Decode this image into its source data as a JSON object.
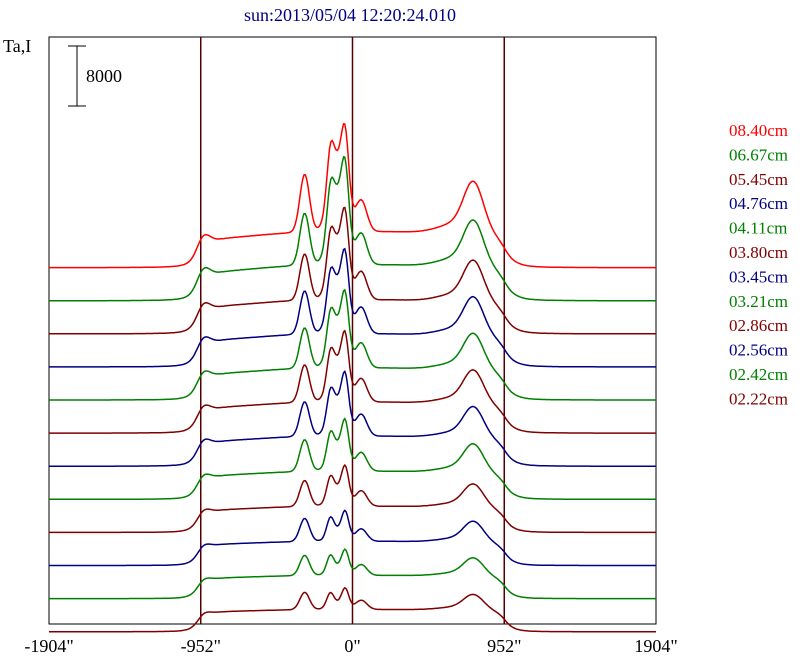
{
  "chart_data": {
    "type": "line",
    "title": "sun:2013/05/04 12:20:24.010",
    "ylabel": "Ta,I",
    "scale_bar_label": "8000",
    "x_tick_values": [
      -1904,
      -952,
      0,
      952,
      1904
    ],
    "x_tick_labels": [
      "-1904\"",
      "-952\"",
      "0\"",
      "952\"",
      "1904\""
    ],
    "xlim": [
      -1904,
      1904
    ],
    "vertical_lines": [
      -952,
      0,
      952
    ],
    "colors": {
      "red": "#ff0000",
      "green": "#008000",
      "maroon": "#800000",
      "navy": "#000080",
      "title": "#000080",
      "axis": "#000000",
      "vline": "#550000"
    },
    "series": [
      {
        "name": "08.40cm",
        "color": "red",
        "baseline": 0,
        "a": 1.0,
        "b": 1.0
      },
      {
        "name": "06.67cm",
        "color": "green",
        "baseline": 1,
        "a": 1.0,
        "b": 0.9
      },
      {
        "name": "05.45cm",
        "color": "maroon",
        "baseline": 2,
        "a": 0.9,
        "b": 0.8
      },
      {
        "name": "04.76cm",
        "color": "navy",
        "baseline": 3,
        "a": 0.85,
        "b": 0.75
      },
      {
        "name": "04.11cm",
        "color": "green",
        "baseline": 4,
        "a": 0.8,
        "b": 0.7
      },
      {
        "name": "03.80cm",
        "color": "maroon",
        "baseline": 5,
        "a": 0.75,
        "b": 0.65
      },
      {
        "name": "03.45cm",
        "color": "navy",
        "baseline": 6,
        "a": 0.7,
        "b": 0.6
      },
      {
        "name": "03.21cm",
        "color": "green",
        "baseline": 7,
        "a": 0.6,
        "b": 0.55
      },
      {
        "name": "02.86cm",
        "color": "maroon",
        "baseline": 8,
        "a": 0.5,
        "b": 0.45
      },
      {
        "name": "02.56cm",
        "color": "navy",
        "baseline": 9,
        "a": 0.4,
        "b": 0.4
      },
      {
        "name": "02.42cm",
        "color": "green",
        "baseline": 10,
        "a": 0.35,
        "b": 0.35
      },
      {
        "name": "02.22cm",
        "color": "maroon",
        "baseline": 11,
        "a": 0.3,
        "b": 0.3
      }
    ]
  }
}
